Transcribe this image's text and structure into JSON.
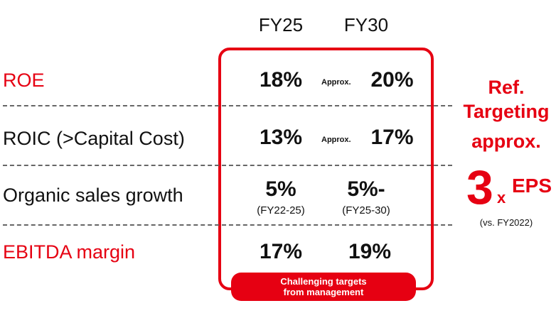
{
  "columns": [
    "FY25",
    "FY30"
  ],
  "rows": [
    {
      "label": "ROE",
      "fy25": "18%",
      "fy30_prefix": "Approx.",
      "fy30": "20%"
    },
    {
      "label": "ROIC (>Capital Cost)",
      "fy25": "13%",
      "fy30_prefix": "Approx.",
      "fy30": "17%"
    },
    {
      "label": "Organic sales growth",
      "fy25": "5%",
      "fy25_sub": "(FY22-25)",
      "fy30": "5%-",
      "fy30_sub": "(FY25-30)"
    },
    {
      "label": "EBITDA margin",
      "fy25": "17%",
      "fy30": "19%"
    }
  ],
  "note": {
    "line1": "Challenging targets",
    "line2": "from management"
  },
  "reference": {
    "line1": "Ref.",
    "line2": "Targeting",
    "line3": "approx.",
    "big": "3",
    "x": "x",
    "metric": "EPS",
    "basis": "(vs. FY2022)"
  },
  "colors": {
    "accent": "#e60012",
    "text": "#111111",
    "divider": "#666666"
  }
}
